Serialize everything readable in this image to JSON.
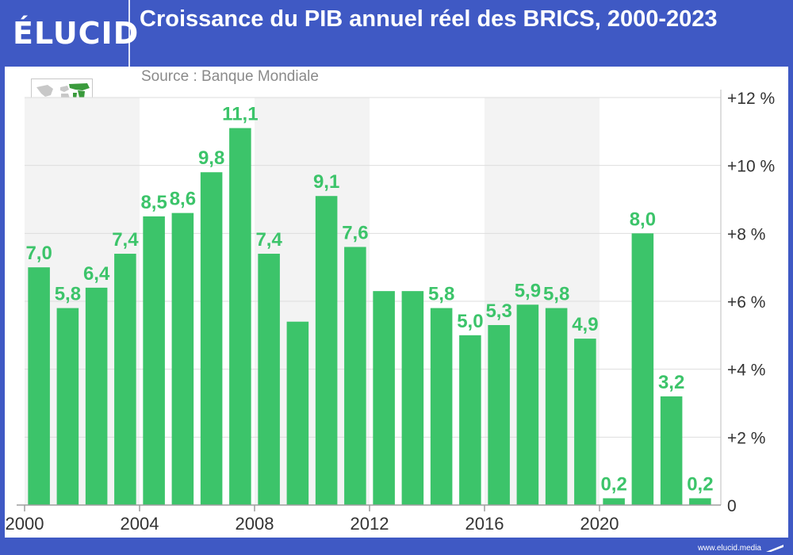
{
  "brand": {
    "logo_text": "ÉLUCID",
    "footer_url": "www.elucid.media",
    "colors": {
      "header": "#3f59c4",
      "bar": "#3cc46a",
      "label": "#3cc46a",
      "axis_text": "#333333",
      "source_text": "#8a8a8a"
    }
  },
  "header": {
    "title": "Croissance du PIB annuel réel des BRICS, 2000-2023",
    "source": "Source : Banque Mondiale",
    "map_icon": "world-map-icon"
  },
  "chart_data": {
    "type": "bar",
    "title": "Croissance du PIB annuel réel des BRICS, 2000-2023",
    "source": "Source : Banque Mondiale",
    "categories": [
      2000,
      2001,
      2002,
      2003,
      2004,
      2005,
      2006,
      2007,
      2008,
      2009,
      2010,
      2011,
      2012,
      2013,
      2014,
      2015,
      2016,
      2017,
      2018,
      2019,
      2020,
      2021,
      2022,
      2023
    ],
    "values": [
      7.0,
      5.8,
      6.4,
      7.4,
      8.5,
      8.6,
      9.8,
      11.1,
      7.4,
      5.4,
      9.1,
      7.6,
      6.3,
      6.3,
      5.8,
      5.0,
      5.3,
      5.9,
      5.8,
      4.9,
      0.2,
      8.0,
      3.2,
      0.2
    ],
    "data_labels": [
      "7,0",
      "5,8",
      "6,4",
      "7,4",
      "8,5",
      "8,6",
      "9,8",
      "11,1",
      "7,4",
      "",
      "9,1",
      "7,6",
      "",
      "",
      "5,8",
      "5,0",
      "5,3",
      "5,9",
      "5,8",
      "4,9",
      "0,2",
      "8,0",
      "3,2",
      "0,2"
    ],
    "x_tick_labels": [
      "2000",
      "2004",
      "2008",
      "2012",
      "2016",
      "2020"
    ],
    "y_tick_labels": [
      "0",
      "+2 %",
      "+4 %",
      "+6 %",
      "+8 %",
      "+10 %",
      "+12 %"
    ],
    "y_ticks": [
      0,
      2,
      4,
      6,
      8,
      10,
      12
    ],
    "ylim": [
      0,
      12
    ],
    "y_axis_position": "right",
    "grid": true,
    "xlabel": "",
    "ylabel": ""
  }
}
